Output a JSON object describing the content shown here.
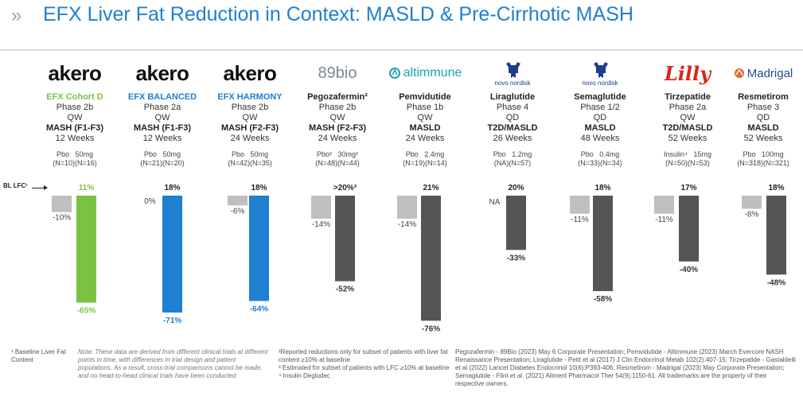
{
  "header": {
    "title": "EFX Liver Fat Reduction in Context: MASLD & Pre-Cirrhotic MASH",
    "chevron": "»"
  },
  "baseline_label": "BL LFC¹",
  "columns": [
    {
      "company": "akero",
      "logo": "akero-logo",
      "drug": "EFX Cohort D",
      "drug_color": "green",
      "phase": "Phase 2b",
      "freq": "QW",
      "indication": "MASH (F1-F3)",
      "duration": "12 Weeks",
      "dose_a": "Pbo",
      "dose_b": "50mg",
      "n_a": "(N=10)",
      "n_b": "(N=16)",
      "bl": "11%",
      "bl_color": "#7cc242",
      "pbo": -10,
      "pbo_label": "-10%",
      "drug_val": -65,
      "drug_label": "-65%",
      "drug_bar_color": "#7cc242"
    },
    {
      "company": "akero",
      "logo": "akero-logo",
      "drug": "EFX BALANCED",
      "drug_color": "blue",
      "phase": "Phase 2a",
      "freq": "QW",
      "indication": "MASH (F1-F3)",
      "duration": "12 Weeks",
      "dose_a": "Pbo",
      "dose_b": "50mg",
      "n_a": "(N=21)",
      "n_b": "(N=20)",
      "bl": "18%",
      "bl_color": "#222222",
      "pbo": 0,
      "pbo_label": "0%",
      "drug_val": -71,
      "drug_label": "-71%",
      "drug_bar_color": "#1f7fd0"
    },
    {
      "company": "akero",
      "logo": "akero-logo",
      "drug": "EFX HARMONY",
      "drug_color": "blue",
      "phase": "Phase 2b",
      "freq": "QW",
      "indication": "MASH (F2-F3)",
      "duration": "24 Weeks",
      "dose_a": "Pbo",
      "dose_b": "50mg",
      "n_a": "(N=42)",
      "n_b": "(N=35)",
      "bl": "18%",
      "bl_color": "#222222",
      "pbo": -6,
      "pbo_label": "-6%",
      "drug_val": -64,
      "drug_label": "-64%",
      "drug_bar_color": "#1f7fd0"
    },
    {
      "company": "89bio",
      "logo": "89bio-logo",
      "drug": "Pegozafermin²",
      "drug_color": "black",
      "phase": "Phase 2b",
      "freq": "QW",
      "indication": "MASH (F2-F3)",
      "duration": "24 Weeks",
      "dose_a": "Pbo²",
      "dose_b": "30mg²",
      "n_a": "(N=48)",
      "n_b": "(N=44)",
      "bl": ">20%³",
      "bl_color": "#222222",
      "pbo": -14,
      "pbo_label": "-14%",
      "drug_val": -52,
      "drug_label": "-52%",
      "drug_bar_color": "#555555"
    },
    {
      "company": "altimmune",
      "logo": "altimmune-logo",
      "drug": "Pemvidutide",
      "drug_color": "black",
      "phase": "Phase 1b",
      "freq": "QW",
      "indication": "MASLD",
      "duration": "24 Weeks",
      "dose_a": "Pbo",
      "dose_b": "2.4mg",
      "n_a": "(N=19)",
      "n_b": "(N=14)",
      "bl": "21%",
      "bl_color": "#222222",
      "pbo": -14,
      "pbo_label": "-14%",
      "drug_val": -76,
      "drug_label": "-76%",
      "drug_bar_color": "#555555"
    },
    {
      "company": "novo nordisk",
      "logo": "novo-nordisk-logo",
      "drug": "Liraglutide",
      "drug_color": "black",
      "phase": "Phase 4",
      "freq": "QD",
      "indication": "T2D/MASLD",
      "duration": "26 Weeks",
      "dose_a": "Pbo",
      "dose_b": "1.2mg",
      "n_a": "(NA)",
      "n_b": "(N=57)",
      "bl": "20%",
      "bl_color": "#222222",
      "pbo": null,
      "pbo_label": "NA",
      "drug_val": -33,
      "drug_label": "-33%",
      "drug_bar_color": "#555555"
    },
    {
      "company": "novo nordisk",
      "logo": "novo-nordisk-logo",
      "drug": "Semaglutide",
      "drug_color": "black",
      "phase": "Phase 1/2",
      "freq": "QD",
      "indication": "MASLD",
      "duration": "48 Weeks",
      "dose_a": "Pbo",
      "dose_b": "0.4mg",
      "n_a": "(N=33)",
      "n_b": "(N=34)",
      "bl": "18%",
      "bl_color": "#222222",
      "pbo": -11,
      "pbo_label": "-11%",
      "drug_val": -58,
      "drug_label": "-58%",
      "drug_bar_color": "#555555"
    },
    {
      "company": "Lilly",
      "logo": "lilly-logo",
      "drug": "Tirzepatide",
      "drug_color": "black",
      "phase": "Phase 2a",
      "freq": "QW",
      "indication": "T2D/MASLD",
      "duration": "52 Weeks",
      "dose_a": "Insulin⁴",
      "dose_b": "15mg",
      "n_a": "(N=50)",
      "n_b": "(N=53)",
      "bl": "17%",
      "bl_color": "#222222",
      "pbo": -11,
      "pbo_label": "-11%",
      "drug_val": -40,
      "drug_label": "-40%",
      "drug_bar_color": "#555555"
    },
    {
      "company": "Madrigal",
      "logo": "madrigal-logo",
      "drug": "Resmetirom",
      "drug_color": "black",
      "phase": "Phase 3",
      "freq": "QD",
      "indication": "MASLD",
      "duration": "52 Weeks",
      "dose_a": "Pbo",
      "dose_b": "100mg",
      "n_a": "(N=318)",
      "n_b": "(N=321)",
      "bl": "18%",
      "bl_color": "#222222",
      "pbo": -8,
      "pbo_label": "-8%",
      "drug_val": -48,
      "drug_label": "-48%",
      "drug_bar_color": "#555555"
    }
  ],
  "chart_data": {
    "type": "bar",
    "categories": [
      "EFX Cohort D",
      "EFX BALANCED",
      "EFX HARMONY",
      "Pegozafermin",
      "Pemvidutide",
      "Liraglutide",
      "Semaglutide",
      "Tirzepatide",
      "Resmetirom"
    ],
    "series": [
      {
        "values": [
          -10,
          0,
          -6,
          -14,
          -14,
          null,
          -11,
          -11,
          -8
        ]
      },
      {
        "values": [
          -65,
          -71,
          -64,
          -52,
          -76,
          -33,
          -58,
          -40,
          -48
        ]
      }
    ],
    "ylim": [
      -76,
      0
    ],
    "colors": {
      "placebo": "#bfbfbf",
      "efx_cohort_d": "#7cc242",
      "efx": "#1f7fd0",
      "competitor": "#555555"
    }
  },
  "footer": {
    "f1": "¹ Baseline Liver Fat Content",
    "note": "Note: These data are derived from different clinical trials at different points in time, with differences in trial design and patient populations. As a result, cross-trial comparisons cannot be made, and no head-to-head clinical trials have been conducted.",
    "f2": "²Reported reductions only for subset of patients with liver fat content ≥10% at baseline",
    "f3": "³ Estimated for subset of patients with LFC ≥10% at baseline",
    "f4": "⁴ Insulin Degludec",
    "refs": "Pegozafermin - 89Bio (2023) May 6 Corporate Presentation; Pemvidutide - Altimmune (2023) March Evercore NASH Renaissance Presentation; Liraglutide - Petit et al (2017) J Clin Endocrinol Metab 102(2):407-15; Tirzepatide - Gastaldelli et al (2022) Lancet Diabetes Endocrinol 10(6):P393-406; Resmetirom - Madrigal (2023) May Corporate Presentation; Semaglutide - Flint et al. (2021) Aliment Pharmacol Ther 54(9):1150-61. All trademarks are the property of their respective owners."
  }
}
